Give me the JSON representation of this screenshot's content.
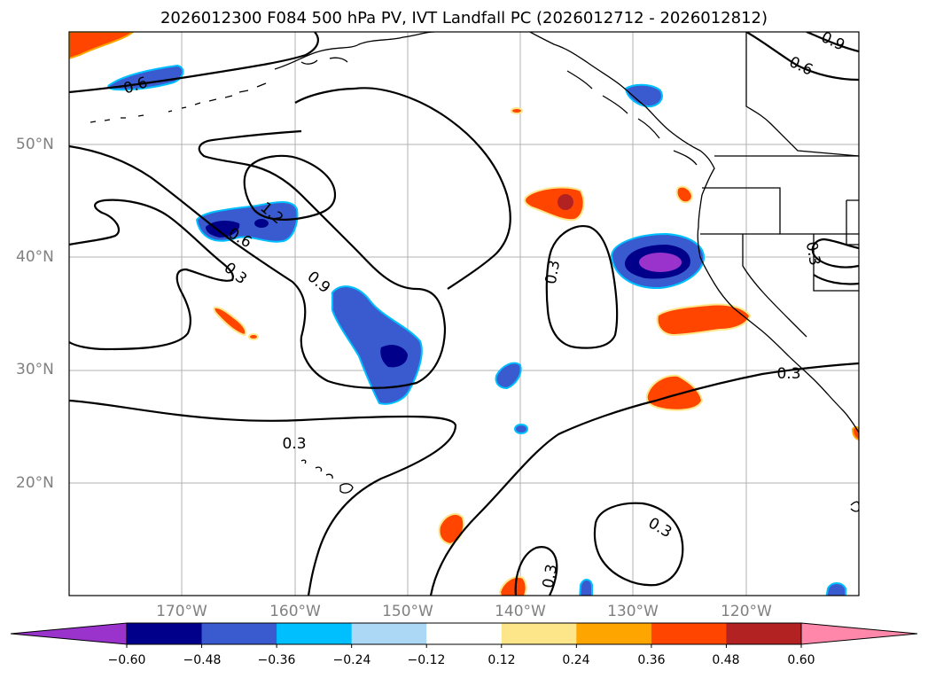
{
  "title": "2026012300 F084 500 hPa PV, IVT Landfall PC (2026012712 - 2026012812)",
  "lat_labels": [
    "50°N",
    "40°N",
    "30°N",
    "20°N"
  ],
  "lon_labels": [
    "170°W",
    "160°W",
    "150°W",
    "140°W",
    "130°W",
    "120°W"
  ],
  "contour_labels": [
    "0.6",
    "1.2",
    "0.6",
    "0.3",
    "0.9",
    "0.3",
    "0.3",
    "0.3",
    "0.3",
    "0.3",
    "0.6",
    "0.9",
    "0.3"
  ],
  "colorbar": {
    "ticks": [
      "−0.60",
      "−0.48",
      "−0.36",
      "−0.24",
      "−0.12",
      "0.12",
      "0.24",
      "0.36",
      "0.48",
      "0.60"
    ],
    "colors": [
      "#9933cc",
      "#00008b",
      "#3a5bcf",
      "#00bfff",
      "#add8f5",
      "#ffffff",
      "#fde68a",
      "#ffa500",
      "#ff4500",
      "#b22222",
      "#ff88aa"
    ]
  }
}
